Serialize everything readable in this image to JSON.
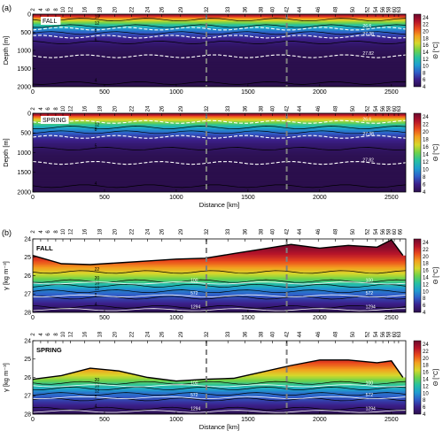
{
  "chart_data": [
    {
      "type": "heatmap",
      "panel_label": "(a)",
      "name": "FALL",
      "xlabel": "",
      "ylabel": "Depth [m]",
      "xlim": [
        0,
        2600
      ],
      "ylim": [
        2000,
        0
      ],
      "xticks": [
        0,
        500,
        1000,
        1500,
        2000,
        2500
      ],
      "yticks": [
        0,
        500,
        1000,
        1500,
        2000
      ],
      "stations": [
        {
          "label": "2",
          "km": 0
        },
        {
          "label": "4",
          "km": 55
        },
        {
          "label": "6",
          "km": 105
        },
        {
          "label": "8",
          "km": 160
        },
        {
          "label": "10",
          "km": 210
        },
        {
          "label": "12",
          "km": 262
        },
        {
          "label": "16",
          "km": 360
        },
        {
          "label": "18",
          "km": 465
        },
        {
          "label": "20",
          "km": 570
        },
        {
          "label": "22",
          "km": 690
        },
        {
          "label": "24",
          "km": 800
        },
        {
          "label": "26",
          "km": 900
        },
        {
          "label": "29",
          "km": 1030
        },
        {
          "label": "32",
          "km": 1210
        },
        {
          "label": "33",
          "km": 1360
        },
        {
          "label": "36",
          "km": 1480
        },
        {
          "label": "38",
          "km": 1590
        },
        {
          "label": "40",
          "km": 1670
        },
        {
          "label": "42",
          "km": 1770
        },
        {
          "label": "44",
          "km": 1860
        },
        {
          "label": "46",
          "km": 1990
        },
        {
          "label": "48",
          "km": 2110
        },
        {
          "label": "50",
          "km": 2230
        },
        {
          "label": "52",
          "km": 2330
        },
        {
          "label": "54",
          "km": 2390
        },
        {
          "label": "56",
          "km": 2440
        },
        {
          "label": "58",
          "km": 2480
        },
        {
          "label": "60",
          "km": 2520
        },
        {
          "label": "63",
          "km": 2550
        }
      ],
      "dashed_sections_km": [
        1210,
        1770
      ],
      "contours": [
        {
          "label": "18",
          "depth": 150
        },
        {
          "label": "12",
          "depth": 330
        },
        {
          "label": "26.6",
          "depth": 400
        },
        {
          "label": "8",
          "depth": 520
        },
        {
          "label": "27.38",
          "depth": 620
        },
        {
          "label": "6",
          "depth": 780
        },
        {
          "label": "27.82",
          "depth": 1160
        },
        {
          "label": "4",
          "depth": 1900
        }
      ],
      "colorbar": {
        "label": "Θ [°C]",
        "range": [
          4,
          25
        ],
        "ticks": [
          4,
          6,
          8,
          10,
          12,
          14,
          16,
          18,
          20,
          22,
          24
        ]
      }
    },
    {
      "type": "heatmap",
      "name": "SPRING",
      "xlabel": "Distance [km]",
      "ylabel": "Depth [m]",
      "xlim": [
        0,
        2600
      ],
      "ylim": [
        2000,
        0
      ],
      "xticks": [
        0,
        500,
        1000,
        1500,
        2000,
        2500
      ],
      "yticks": [
        0,
        500,
        1000,
        1500,
        2000
      ],
      "stations": [
        {
          "label": "2",
          "km": 0
        },
        {
          "label": "4",
          "km": 55
        },
        {
          "label": "6",
          "km": 105
        },
        {
          "label": "8",
          "km": 160
        },
        {
          "label": "10",
          "km": 210
        },
        {
          "label": "12",
          "km": 262
        },
        {
          "label": "16",
          "km": 360
        },
        {
          "label": "18",
          "km": 465
        },
        {
          "label": "20",
          "km": 570
        },
        {
          "label": "22",
          "km": 690
        },
        {
          "label": "24",
          "km": 800
        },
        {
          "label": "26",
          "km": 900
        },
        {
          "label": "29",
          "km": 1030
        },
        {
          "label": "32",
          "km": 1210
        },
        {
          "label": "33",
          "km": 1360
        },
        {
          "label": "36",
          "km": 1480
        },
        {
          "label": "38",
          "km": 1590
        },
        {
          "label": "40",
          "km": 1670
        },
        {
          "label": "42",
          "km": 1770
        },
        {
          "label": "44",
          "km": 1860
        },
        {
          "label": "46",
          "km": 1990
        },
        {
          "label": "48",
          "km": 2110
        },
        {
          "label": "50",
          "km": 2230
        },
        {
          "label": "52",
          "km": 2330
        },
        {
          "label": "54",
          "km": 2390
        },
        {
          "label": "56",
          "km": 2440
        },
        {
          "label": "58",
          "km": 2480
        },
        {
          "label": "60",
          "km": 2520
        },
        {
          "label": "63",
          "km": 2550
        }
      ],
      "dashed_sections_km": [
        1210,
        1770
      ],
      "contours": [
        {
          "label": "26.6",
          "depth": 220
        },
        {
          "label": "12",
          "depth": 360
        },
        {
          "label": "8",
          "depth": 480
        },
        {
          "label": "27.38",
          "depth": 600
        },
        {
          "label": "5",
          "depth": 900
        },
        {
          "label": "27.82",
          "depth": 1260
        },
        {
          "label": "4",
          "depth": 1850
        }
      ],
      "colorbar": {
        "label": "Θ [°C]",
        "range": [
          4,
          25
        ],
        "ticks": [
          4,
          6,
          8,
          10,
          12,
          14,
          16,
          18,
          20,
          22,
          24
        ]
      }
    },
    {
      "type": "heatmap",
      "panel_label": "(b)",
      "name": "FALL",
      "xlabel": "",
      "ylabel": "γ [kg m⁻³]",
      "xlim": [
        0,
        2600
      ],
      "ylim": [
        28,
        24
      ],
      "xticks": [
        0,
        500,
        1000,
        1500,
        2000,
        2500
      ],
      "yticks": [
        24,
        25,
        26,
        27,
        28
      ],
      "stations": [
        {
          "label": "2",
          "km": 0
        },
        {
          "label": "4",
          "km": 55
        },
        {
          "label": "6",
          "km": 105
        },
        {
          "label": "8",
          "km": 160
        },
        {
          "label": "10",
          "km": 210
        },
        {
          "label": "12",
          "km": 262
        },
        {
          "label": "16",
          "km": 360
        },
        {
          "label": "18",
          "km": 465
        },
        {
          "label": "20",
          "km": 570
        },
        {
          "label": "22",
          "km": 690
        },
        {
          "label": "24",
          "km": 800
        },
        {
          "label": "26",
          "km": 900
        },
        {
          "label": "29",
          "km": 1030
        },
        {
          "label": "32",
          "km": 1210
        },
        {
          "label": "33",
          "km": 1360
        },
        {
          "label": "36",
          "km": 1480
        },
        {
          "label": "38",
          "km": 1590
        },
        {
          "label": "40",
          "km": 1670
        },
        {
          "label": "42",
          "km": 1770
        },
        {
          "label": "44",
          "km": 1860
        },
        {
          "label": "46",
          "km": 1990
        },
        {
          "label": "48",
          "km": 2110
        },
        {
          "label": "50",
          "km": 2230
        },
        {
          "label": "52",
          "km": 2330
        },
        {
          "label": "54",
          "km": 2390
        },
        {
          "label": "56",
          "km": 2440
        },
        {
          "label": "58",
          "km": 2480
        },
        {
          "label": "60",
          "km": 2520
        },
        {
          "label": "66",
          "km": 2560
        }
      ],
      "dashed_sections_km": [
        1210,
        1770
      ],
      "surface_density": [
        [
          0,
          24.9
        ],
        [
          200,
          25.35
        ],
        [
          400,
          25.4
        ],
        [
          600,
          25.3
        ],
        [
          800,
          25.2
        ],
        [
          1000,
          25.1
        ],
        [
          1200,
          25.05
        ],
        [
          1400,
          24.8
        ],
        [
          1600,
          24.55
        ],
        [
          1800,
          24.3
        ],
        [
          2000,
          24.5
        ],
        [
          2200,
          24.35
        ],
        [
          2400,
          24.45
        ],
        [
          2500,
          24.05
        ],
        [
          2580,
          24.9
        ]
      ],
      "contours": [
        {
          "label": "22",
          "gamma": 25.8
        },
        {
          "label": "20",
          "gamma": 26.3
        },
        {
          "label": "16",
          "gamma": 26.55
        },
        {
          "label": "12",
          "gamma": 26.85
        },
        {
          "label": "8",
          "gamma": 27.2
        },
        {
          "label": "4",
          "gamma": 27.7
        }
      ],
      "depth_contours": [
        {
          "label": "100",
          "gamma": 26.4
        },
        {
          "label": "572",
          "gamma": 27.1
        },
        {
          "label": "1294",
          "gamma": 27.85
        }
      ],
      "colorbar": {
        "label": "Θ [°C]",
        "range": [
          4,
          25
        ],
        "ticks": [
          4,
          6,
          8,
          10,
          12,
          14,
          16,
          18,
          20,
          22,
          24
        ]
      }
    },
    {
      "type": "heatmap",
      "name": "SPRING",
      "xlabel": "Distance [km]",
      "ylabel": "γ [kg m⁻³]",
      "xlim": [
        0,
        2600
      ],
      "ylim": [
        28,
        24
      ],
      "xticks": [
        0,
        500,
        1000,
        1500,
        2000,
        2500
      ],
      "yticks": [
        24,
        25,
        26,
        27,
        28
      ],
      "stations": [
        {
          "label": "2",
          "km": 0
        },
        {
          "label": "4",
          "km": 55
        },
        {
          "label": "6",
          "km": 105
        },
        {
          "label": "8",
          "km": 160
        },
        {
          "label": "10",
          "km": 210
        },
        {
          "label": "12",
          "km": 262
        },
        {
          "label": "16",
          "km": 360
        },
        {
          "label": "18",
          "km": 465
        },
        {
          "label": "20",
          "km": 570
        },
        {
          "label": "22",
          "km": 690
        },
        {
          "label": "24",
          "km": 800
        },
        {
          "label": "26",
          "km": 900
        },
        {
          "label": "29",
          "km": 1030
        },
        {
          "label": "32",
          "km": 1210
        },
        {
          "label": "33",
          "km": 1360
        },
        {
          "label": "36",
          "km": 1480
        },
        {
          "label": "38",
          "km": 1590
        },
        {
          "label": "40",
          "km": 1670
        },
        {
          "label": "42",
          "km": 1770
        },
        {
          "label": "44",
          "km": 1860
        },
        {
          "label": "46",
          "km": 1990
        },
        {
          "label": "48",
          "km": 2110
        },
        {
          "label": "50",
          "km": 2230
        },
        {
          "label": "52",
          "km": 2330
        },
        {
          "label": "54",
          "km": 2390
        },
        {
          "label": "56",
          "km": 2440
        },
        {
          "label": "58",
          "km": 2480
        },
        {
          "label": "60",
          "km": 2520
        },
        {
          "label": "63",
          "km": 2550
        }
      ],
      "dashed_sections_km": [
        1210,
        1770
      ],
      "surface_density": [
        [
          0,
          26.1
        ],
        [
          200,
          25.9
        ],
        [
          400,
          25.5
        ],
        [
          600,
          25.65
        ],
        [
          800,
          26.0
        ],
        [
          1000,
          26.2
        ],
        [
          1200,
          26.1
        ],
        [
          1400,
          26.05
        ],
        [
          1600,
          25.7
        ],
        [
          1800,
          25.35
        ],
        [
          2000,
          25.05
        ],
        [
          2200,
          25.05
        ],
        [
          2400,
          25.2
        ],
        [
          2500,
          25.1
        ],
        [
          2580,
          26.0
        ]
      ],
      "contours": [
        {
          "label": "20",
          "gamma": 26.3
        },
        {
          "label": "16",
          "gamma": 26.6
        },
        {
          "label": "12",
          "gamma": 26.9
        },
        {
          "label": "8",
          "gamma": 27.2
        },
        {
          "label": "4",
          "gamma": 27.7
        }
      ],
      "depth_contours": [
        {
          "label": "100",
          "gamma": 26.45
        },
        {
          "label": "572",
          "gamma": 27.1
        },
        {
          "label": "1294",
          "gamma": 27.85
        }
      ],
      "colorbar": {
        "label": "Θ [°C]",
        "range": [
          4,
          25
        ],
        "ticks": [
          4,
          6,
          8,
          10,
          12,
          14,
          16,
          18,
          20,
          22,
          24
        ]
      }
    }
  ],
  "colors": {
    "stops": [
      "#2b0f4c",
      "#3b1f8a",
      "#2f5fc9",
      "#1f9ed0",
      "#27c1a0",
      "#6ed24a",
      "#d6d82b",
      "#f3a11f",
      "#ea4b1d",
      "#b5132a",
      "#6a0a2e"
    ],
    "dashed_section": "#808080",
    "isopycnal": "#ffffff",
    "contour": "#000000"
  }
}
